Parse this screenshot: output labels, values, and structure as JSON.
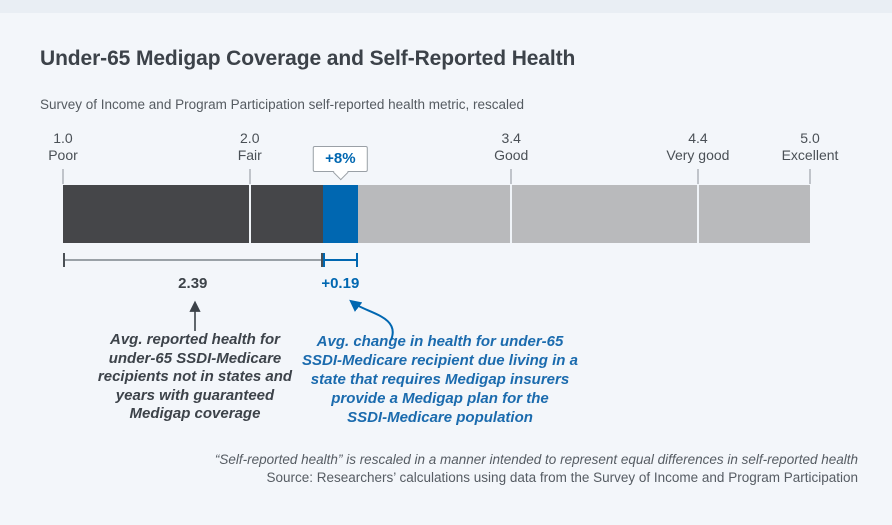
{
  "chart_data": {
    "type": "bar",
    "title": "Under-65 Medigap Coverage and Self-Reported Health",
    "subtitle": "Survey of Income and Program Participation self-reported health metric, rescaled",
    "axis": {
      "min": 1.0,
      "max": 5.0,
      "ticks": [
        {
          "value": "1.0",
          "label": "Poor",
          "position": 1.0
        },
        {
          "value": "2.0",
          "label": "Fair",
          "position": 2.0
        },
        {
          "value": "3.4",
          "label": "Good",
          "position": 3.4
        },
        {
          "value": "4.4",
          "label": "Very good",
          "position": 4.4
        },
        {
          "value": "5.0",
          "label": "Excellent",
          "position": 5.0
        }
      ]
    },
    "segments": [
      {
        "name": "baseline-health",
        "from": 1.0,
        "to": 2.39,
        "color": "#454649"
      },
      {
        "name": "medigap-effect",
        "from": 2.39,
        "to": 2.58,
        "color": "#0067b1"
      },
      {
        "name": "remainder",
        "from": 2.58,
        "to": 5.0,
        "color": "#b9babc"
      }
    ],
    "baseline": {
      "value": "2.39",
      "annotation_lines": [
        "Avg. reported health for",
        "under-65 SSDI-Medicare",
        "recipients not in states and",
        "years with guaranteed",
        "Medigap coverage"
      ]
    },
    "effect": {
      "value": "+0.19",
      "percent": "+8%",
      "annotation_lines": [
        "Avg. change in health for under-65",
        "SSDI-Medicare recipient due living in a",
        "state that requires Medigap insurers",
        "provide a Medigap plan for the",
        "SSDI-Medicare population"
      ]
    },
    "footnote": "“Self-reported health” is rescaled in a manner intended to represent equal differences in self-reported health",
    "source": "Source: Researchers’ calculations using data from the Survey of Income and Program Participation",
    "colors": {
      "accent_blue": "#0067b1",
      "dark_gray": "#454649",
      "light_gray": "#b9babc",
      "background": "#f3f6fa"
    }
  }
}
